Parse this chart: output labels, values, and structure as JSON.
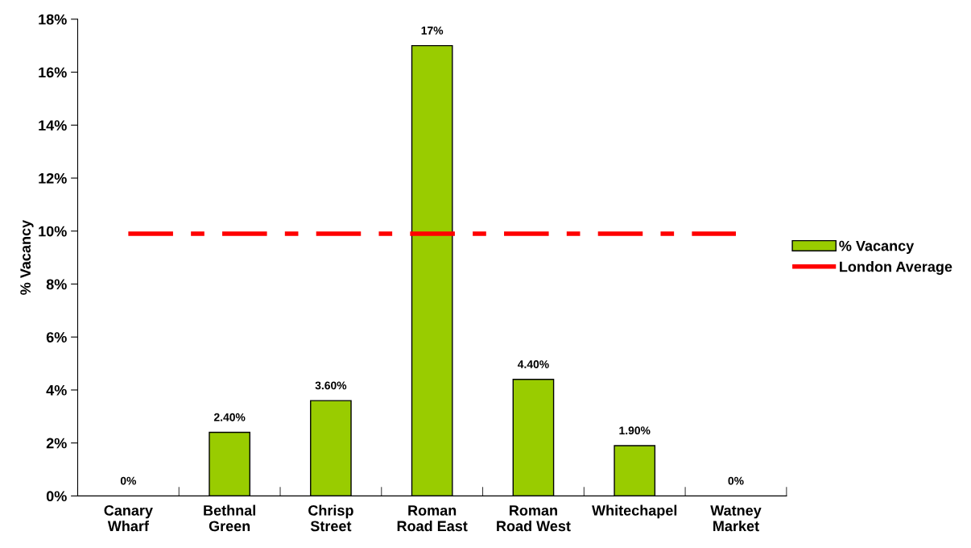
{
  "chart_data": {
    "type": "bar",
    "ylabel": "% Vacancy",
    "categories": [
      "Canary\nWharf",
      "Bethnal\nGreen",
      "Chrisp\nStreet",
      "Roman\nRoad East",
      "Roman\nRoad West",
      "Whitechapel",
      "Watney\nMarket"
    ],
    "series": [
      {
        "name": "% Vacancy",
        "color": "#99cc00",
        "values": [
          0,
          2.4,
          3.6,
          17,
          4.4,
          1.9,
          0
        ],
        "value_labels": [
          "0%",
          "2.40%",
          "3.60%",
          "17%",
          "4.40%",
          "1.90%",
          "0%"
        ]
      },
      {
        "name": "London Average",
        "type": "line",
        "color": "#ff0000",
        "line_style": "dashed",
        "values": [
          9.9,
          9.9,
          9.9,
          9.9,
          9.9,
          9.9,
          9.9
        ]
      }
    ],
    "ylim": [
      0,
      18
    ],
    "yticks": [
      {
        "value": 0,
        "label": "0%"
      },
      {
        "value": 2,
        "label": "2%"
      },
      {
        "value": 4,
        "label": "4%"
      },
      {
        "value": 6,
        "label": "6%"
      },
      {
        "value": 8,
        "label": "8%"
      },
      {
        "value": 10,
        "label": "10%"
      },
      {
        "value": 12,
        "label": "12%"
      },
      {
        "value": 14,
        "label": "14%"
      },
      {
        "value": 16,
        "label": "16%"
      },
      {
        "value": 18,
        "label": "18%"
      }
    ],
    "grid": false,
    "legend": "right"
  }
}
